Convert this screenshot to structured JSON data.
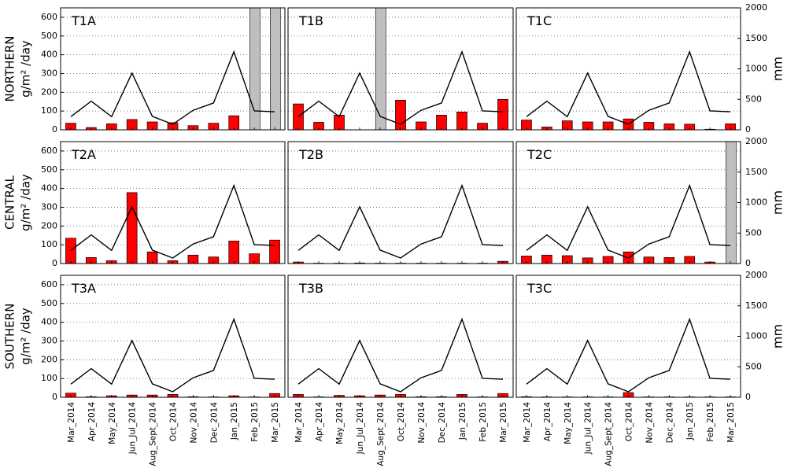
{
  "chart_data": {
    "type": "bar",
    "categories": [
      "Mar_2014",
      "Apr_2014",
      "May_2014",
      "Jun_Jul_2014",
      "Aug_Sept_2014",
      "Oct_2014",
      "Nov_2014",
      "Dec_2014",
      "Jan_2015",
      "Feb_2015",
      "Mar_2015"
    ],
    "y_left_ticks": [
      "0",
      "100",
      "200",
      "300",
      "400",
      "500",
      "600"
    ],
    "y_left_lim": [
      0,
      650
    ],
    "y_right_ticks": [
      "0",
      "500",
      "1000",
      "1500",
      "2000"
    ],
    "y_right_lim": [
      0,
      2000
    ],
    "y_right_label": "mm",
    "grid": "horizontal dotted",
    "colors": {
      "bar": "#ff0000",
      "bar_edge": "#000000",
      "line": "#000000",
      "gap": "#bfbfbf"
    },
    "rainfall_mm": [
      215,
      470,
      215,
      930,
      220,
      90,
      320,
      440,
      1280,
      310,
      295
    ],
    "rows": [
      {
        "label": "NORTHERN",
        "ylabel": "g/m² /day",
        "panels": [
          {
            "title": "T1A",
            "values": [
              35,
              12,
              32,
              55,
              42,
              38,
              22,
              35,
              75,
              0,
              0
            ],
            "gaps": [
              9,
              10
            ]
          },
          {
            "title": "T1B",
            "values": [
              138,
              40,
              78,
              0,
              0,
              158,
              42,
              78,
              95,
              35,
              162
            ],
            "gaps": [
              4
            ]
          },
          {
            "title": "T1C",
            "values": [
              52,
              15,
              48,
              42,
              42,
              58,
              40,
              32,
              30,
              3,
              32
            ],
            "gaps": []
          }
        ]
      },
      {
        "label": "CENTRAL",
        "ylabel": "g/m² /day",
        "panels": [
          {
            "title": "T2A",
            "values": [
              135,
              32,
              15,
              378,
              62,
              15,
              45,
              35,
              120,
              52,
              125
            ],
            "gaps": []
          },
          {
            "title": "T2B",
            "values": [
              8,
              2,
              2,
              3,
              2,
              2,
              2,
              2,
              2,
              2,
              12
            ],
            "gaps": []
          },
          {
            "title": "T2C",
            "values": [
              40,
              45,
              42,
              30,
              38,
              62,
              35,
              32,
              38,
              8,
              0
            ],
            "gaps": [
              10
            ]
          }
        ]
      },
      {
        "label": "SOUTHERN",
        "ylabel": "g/m² /day",
        "panels": [
          {
            "title": "T3A",
            "values": [
              22,
              3,
              8,
              12,
              12,
              15,
              3,
              2,
              8,
              2,
              20
            ],
            "gaps": []
          },
          {
            "title": "T3B",
            "values": [
              15,
              2,
              10,
              8,
              12,
              15,
              3,
              3,
              15,
              2,
              20
            ],
            "gaps": []
          },
          {
            "title": "T3C",
            "values": [
              3,
              2,
              2,
              2,
              2,
              25,
              2,
              2,
              2,
              2,
              2
            ],
            "gaps": []
          }
        ]
      }
    ]
  }
}
